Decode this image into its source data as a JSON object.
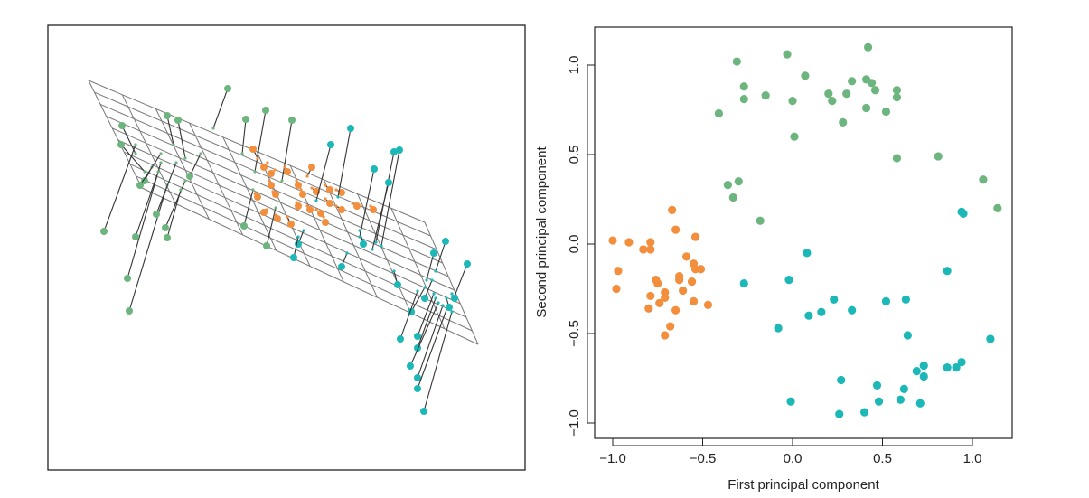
{
  "colors": {
    "green": "#6db57e",
    "orange": "#f28e3c",
    "teal": "#1cb8b8"
  },
  "chart_data": [
    {
      "type": "scatter",
      "description_panel": "3d",
      "title": "",
      "xlabel": "",
      "ylabel": ""
    },
    {
      "type": "scatter",
      "title": "",
      "xlabel": "First principal component",
      "ylabel": "Second principal component",
      "xlim": [
        -1.1,
        1.22
      ],
      "ylim": [
        -1.08,
        1.2
      ],
      "xticks": [
        "−1.0",
        "−0.5",
        "0.0",
        "0.5",
        "1.0"
      ],
      "xtick_values": [
        -1.0,
        -0.5,
        0.0,
        0.5,
        1.0
      ],
      "yticks": [
        "−1.0",
        "−0.5",
        "0.0",
        "0.5",
        "1.0"
      ],
      "ytick_values": [
        -1.0,
        -0.5,
        0.0,
        0.5,
        1.0
      ],
      "grid": false,
      "series": [
        {
          "color": "green",
          "x": [
            0.42,
            -0.03,
            -0.31,
            0.07,
            0.33,
            0.41,
            0.44,
            0.46,
            0.58,
            0.58,
            -0.27,
            -0.27,
            -0.15,
            0.0,
            0.2,
            0.22,
            0.3,
            0.41,
            0.52,
            -0.41,
            0.28,
            0.01,
            0.58,
            0.81,
            1.06,
            1.14,
            -0.36,
            -0.3,
            -0.33,
            -0.18
          ],
          "y": [
            1.1,
            1.06,
            1.02,
            0.94,
            0.91,
            0.92,
            0.9,
            0.86,
            0.86,
            0.82,
            0.88,
            0.81,
            0.83,
            0.8,
            0.84,
            0.8,
            0.84,
            0.76,
            0.74,
            0.73,
            0.68,
            0.6,
            0.48,
            0.49,
            0.36,
            0.2,
            0.33,
            0.35,
            0.26,
            0.13
          ]
        },
        {
          "color": "orange",
          "x": [
            -0.67,
            -0.65,
            -0.54,
            -1.0,
            -0.91,
            -0.83,
            -0.79,
            -0.79,
            -0.59,
            -0.55,
            -0.54,
            -0.51,
            -0.97,
            -0.63,
            -0.63,
            -0.76,
            -0.75,
            -0.56,
            -0.98,
            -0.71,
            -0.61,
            -0.79,
            -0.71,
            -0.74,
            -0.55,
            -0.47,
            -0.8,
            -0.65,
            -0.68,
            -0.71
          ],
          "y": [
            0.19,
            0.08,
            0.04,
            0.02,
            0.01,
            -0.03,
            0.01,
            -0.03,
            -0.07,
            -0.11,
            -0.14,
            -0.14,
            -0.15,
            -0.18,
            -0.2,
            -0.2,
            -0.22,
            -0.21,
            -0.25,
            -0.27,
            -0.26,
            -0.29,
            -0.3,
            -0.33,
            -0.32,
            -0.34,
            -0.36,
            -0.37,
            -0.46,
            -0.51
          ]
        },
        {
          "color": "teal",
          "x": [
            0.94,
            0.95,
            0.08,
            -0.27,
            -0.02,
            0.86,
            0.23,
            0.52,
            0.63,
            0.33,
            0.09,
            0.16,
            -0.08,
            0.64,
            1.1,
            0.94,
            0.91,
            0.86,
            0.73,
            0.69,
            0.73,
            0.27,
            0.47,
            0.62,
            -0.01,
            0.48,
            0.6,
            0.71,
            0.4,
            0.26
          ],
          "y": [
            0.18,
            0.17,
            -0.05,
            -0.22,
            -0.2,
            -0.15,
            -0.31,
            -0.32,
            -0.31,
            -0.37,
            -0.4,
            -0.38,
            -0.47,
            -0.51,
            -0.53,
            -0.66,
            -0.69,
            -0.69,
            -0.68,
            -0.71,
            -0.74,
            -0.76,
            -0.79,
            -0.81,
            -0.88,
            -0.88,
            -0.87,
            -0.89,
            -0.94,
            -0.95
          ]
        }
      ]
    }
  ]
}
